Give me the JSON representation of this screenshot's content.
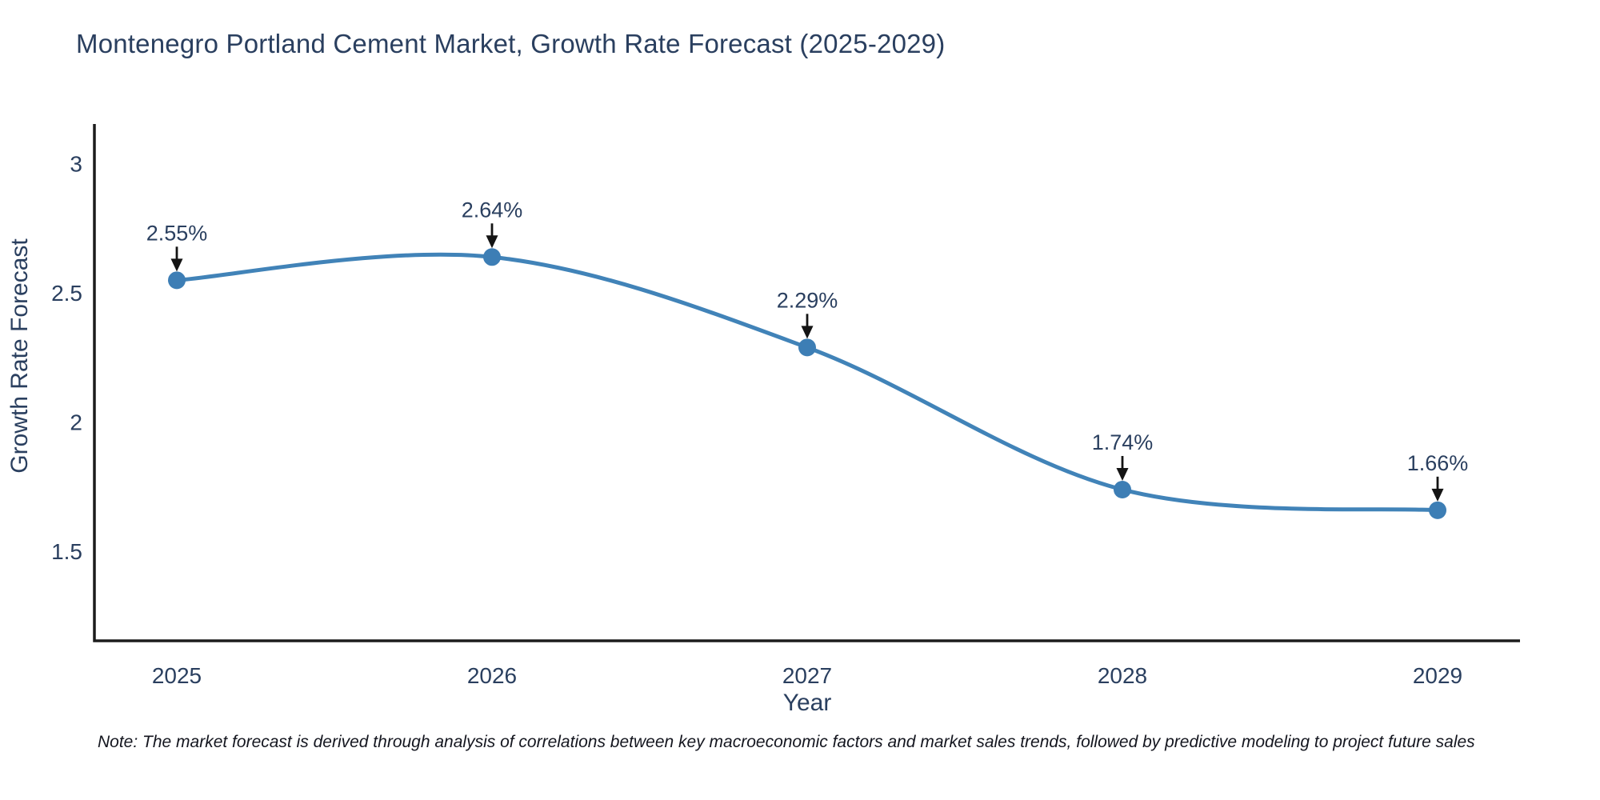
{
  "title": "Montenegro Portland Cement Market, Growth Rate Forecast (2025-2029)",
  "note": "Note: The market forecast is derived through analysis of correlations between key macroeconomic factors and market sales trends, followed by predictive modeling to project future sales",
  "colors": {
    "line": "#4183b8",
    "marker": "#3d7eb5",
    "axis": "#1c1c1c",
    "text": "#2a3f5f",
    "arrow": "#141414",
    "background": "#ffffff"
  },
  "chart_data": {
    "type": "line",
    "title": "Montenegro Portland Cement Market, Growth Rate Forecast (2025-2029)",
    "xlabel": "Year",
    "ylabel": "Growth Rate Forecast",
    "x": [
      2025,
      2026,
      2027,
      2028,
      2029
    ],
    "values": [
      2.55,
      2.64,
      2.29,
      1.74,
      1.66
    ],
    "point_labels": [
      "2.55%",
      "2.64%",
      "2.29%",
      "1.74%",
      "1.66%"
    ],
    "xtick_labels": [
      "2025",
      "2026",
      "2027",
      "2028",
      "2029"
    ],
    "ytick_values": [
      3,
      2.5,
      2,
      1.5
    ],
    "ytick_labels": [
      "3",
      "2.5",
      "2",
      "1.5"
    ],
    "xlim": [
      2024.74,
      2029.26
    ],
    "ylim": [
      1.15,
      3.15
    ],
    "grid": false,
    "legend": "none",
    "line_shape": "spline",
    "annotations_have_arrows": true
  }
}
